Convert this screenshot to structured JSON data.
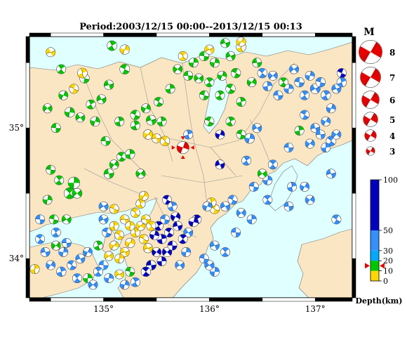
{
  "title": "Period:2003/12/15 00:00--2013/12/15 00:13",
  "map": {
    "lon_labels": [
      "135°",
      "136°",
      "137°"
    ],
    "lon_values": [
      135,
      136,
      137
    ],
    "lat_labels": [
      "35°",
      "34°"
    ],
    "lat_values": [
      35,
      34
    ],
    "lon_range": [
      134.3,
      137.35
    ],
    "lat_range": [
      33.7,
      35.7
    ],
    "land_color": "#fae6c3",
    "sea_color": "#e0ffff",
    "depth_colors": {
      "shallow": "#ffd700",
      "d10_20": "#00c800",
      "d20_30": "#00aaff",
      "d30_50": "#3390ff",
      "deep": "#0000c0"
    },
    "mechanisms": [
      [
        134.47,
        35.15,
        3.6,
        "#00c800",
        1
      ],
      [
        134.55,
        35.0,
        3.6,
        "#00c800",
        2
      ],
      [
        134.6,
        35.45,
        3.6,
        "#00c800",
        3
      ],
      [
        134.68,
        35.12,
        3.8,
        "#00c800",
        4
      ],
      [
        134.78,
        35.08,
        3.6,
        "#00c800",
        5
      ],
      [
        134.82,
        35.38,
        3.7,
        "#00c800",
        6
      ],
      [
        134.88,
        35.18,
        3.6,
        "#00c800",
        7
      ],
      [
        134.92,
        35.05,
        3.7,
        "#00c800",
        8
      ],
      [
        134.98,
        35.22,
        3.6,
        "#00c800",
        9
      ],
      [
        134.72,
        35.3,
        3.6,
        "#ffd700",
        10
      ],
      [
        134.8,
        35.42,
        3.8,
        "#ffd700",
        11
      ],
      [
        134.62,
        35.25,
        3.6,
        "#00c800",
        12
      ],
      [
        135.05,
        35.33,
        3.7,
        "#00c800",
        13
      ],
      [
        135.2,
        35.45,
        3.8,
        "#00c800",
        14
      ],
      [
        135.15,
        35.05,
        3.6,
        "#00c800",
        15
      ],
      [
        135.1,
        34.72,
        3.6,
        "#00c800",
        16
      ],
      [
        135.05,
        34.65,
        3.8,
        "#00c800",
        17
      ],
      [
        135.17,
        34.78,
        3.6,
        "#00c800",
        18
      ],
      [
        135.25,
        34.8,
        3.7,
        "#00c800",
        19
      ],
      [
        135.35,
        34.65,
        3.6,
        "#00c800",
        20
      ],
      [
        135.02,
        34.9,
        3.6,
        "#00c800",
        21
      ],
      [
        134.68,
        34.5,
        4.2,
        "#00c800",
        22
      ],
      [
        134.72,
        34.58,
        4.4,
        "#00c800",
        23
      ],
      [
        134.75,
        34.5,
        3.8,
        "#00c800",
        24
      ],
      [
        134.5,
        34.68,
        3.6,
        "#00c800",
        25
      ],
      [
        134.58,
        34.6,
        3.6,
        "#00c800",
        26
      ],
      [
        134.47,
        34.45,
        3.6,
        "#00c800",
        27
      ],
      [
        134.65,
        34.3,
        3.6,
        "#00c800",
        28
      ],
      [
        134.53,
        34.3,
        3.6,
        "#00c800",
        29
      ],
      [
        135.08,
        35.63,
        3.8,
        "#00c800",
        30
      ],
      [
        135.2,
        35.6,
        3.7,
        "#ffd700",
        31
      ],
      [
        134.5,
        35.58,
        3.6,
        "#ffd700",
        32
      ],
      [
        135.3,
        35.1,
        3.7,
        "#00c800",
        33
      ],
      [
        135.3,
        35.02,
        3.6,
        "#00c800",
        34
      ],
      [
        135.4,
        35.15,
        3.6,
        "#00c800",
        35
      ],
      [
        135.45,
        35.06,
        3.8,
        "#00c800",
        36
      ],
      [
        135.52,
        35.2,
        3.6,
        "#00c800",
        37
      ],
      [
        135.55,
        35.05,
        3.6,
        "#00c800",
        38
      ],
      [
        135.42,
        34.95,
        3.7,
        "#ffd700",
        39
      ],
      [
        135.5,
        34.92,
        3.6,
        "#ffd700",
        40
      ],
      [
        135.58,
        34.9,
        3.7,
        "#ffd700",
        41
      ],
      [
        135.63,
        35.3,
        3.6,
        "#00c800",
        42
      ],
      [
        135.7,
        35.45,
        3.6,
        "#00c800",
        43
      ],
      [
        135.8,
        35.4,
        3.6,
        "#00c800",
        44
      ],
      [
        135.75,
        35.55,
        3.6,
        "#ffd700",
        45
      ],
      [
        135.85,
        35.5,
        3.6,
        "#00c800",
        46
      ],
      [
        135.9,
        35.38,
        3.6,
        "#00c800",
        47
      ],
      [
        135.95,
        35.55,
        3.7,
        "#00c800",
        48
      ],
      [
        136.0,
        35.35,
        3.6,
        "#00c800",
        49
      ],
      [
        136.05,
        35.5,
        3.6,
        "#00c800",
        50
      ],
      [
        136.0,
        35.6,
        3.6,
        "#ffd700",
        51
      ],
      [
        135.95,
        35.25,
        3.6,
        "#00c800",
        52
      ],
      [
        136.1,
        35.25,
        3.6,
        "#00c800",
        53
      ],
      [
        136.12,
        35.4,
        3.6,
        "#00c800",
        54
      ],
      [
        136.2,
        35.55,
        3.6,
        "#00c800",
        55
      ],
      [
        136.25,
        35.42,
        3.7,
        "#00c800",
        56
      ],
      [
        136.3,
        35.62,
        3.8,
        "#ffd700",
        57
      ],
      [
        136.3,
        35.66,
        3.6,
        "#ffd700",
        58
      ],
      [
        136.15,
        35.65,
        3.6,
        "#00c800",
        59
      ],
      [
        136.2,
        35.3,
        3.7,
        "#00c800",
        60
      ],
      [
        136.3,
        35.2,
        3.6,
        "#00c800",
        61
      ],
      [
        136.4,
        35.35,
        3.6,
        "#00c800",
        62
      ],
      [
        136.45,
        35.5,
        3.6,
        "#00c800",
        63
      ],
      [
        136.5,
        35.42,
        3.7,
        "#3390ff",
        64
      ],
      [
        136.55,
        35.32,
        3.6,
        "#3390ff",
        65
      ],
      [
        136.6,
        35.4,
        3.6,
        "#3390ff",
        66
      ],
      [
        136.65,
        35.25,
        3.6,
        "#3390ff",
        67
      ],
      [
        136.7,
        35.35,
        3.6,
        "#00c800",
        68
      ],
      [
        136.75,
        35.3,
        3.6,
        "#3390ff",
        69
      ],
      [
        136.8,
        35.45,
        3.6,
        "#3390ff",
        70
      ],
      [
        136.85,
        35.35,
        3.7,
        "#3390ff",
        71
      ],
      [
        136.9,
        35.25,
        3.6,
        "#3390ff",
        72
      ],
      [
        136.95,
        35.4,
        3.6,
        "#3390ff",
        73
      ],
      [
        137.0,
        35.3,
        3.8,
        "#3390ff",
        74
      ],
      [
        137.05,
        35.35,
        3.7,
        "#3390ff",
        75
      ],
      [
        137.1,
        35.25,
        3.7,
        "#3390ff",
        76
      ],
      [
        137.15,
        35.15,
        3.6,
        "#3390ff",
        77
      ],
      [
        137.2,
        35.3,
        3.6,
        "#3390ff",
        78
      ],
      [
        137.25,
        35.42,
        3.6,
        "#0000c0",
        79
      ],
      [
        137.25,
        35.35,
        3.7,
        "#3390ff",
        80
      ],
      [
        137.1,
        35.05,
        3.6,
        "#3390ff",
        81
      ],
      [
        137.0,
        35.0,
        3.6,
        "#3390ff",
        82
      ],
      [
        136.9,
        35.1,
        3.6,
        "#3390ff",
        83
      ],
      [
        136.85,
        34.98,
        3.6,
        "#00c800",
        84
      ],
      [
        136.95,
        34.88,
        3.6,
        "#3390ff",
        85
      ],
      [
        137.05,
        34.95,
        3.6,
        "#3390ff",
        86
      ],
      [
        137.15,
        34.9,
        3.8,
        "#3390ff",
        87
      ],
      [
        137.1,
        34.85,
        3.6,
        "#3390ff",
        88
      ],
      [
        137.2,
        34.95,
        3.6,
        "#3390ff",
        89
      ],
      [
        136.75,
        34.85,
        3.6,
        "#3390ff",
        90
      ],
      [
        136.6,
        34.72,
        3.6,
        "#3390ff",
        91
      ],
      [
        136.55,
        34.6,
        3.6,
        "#3390ff",
        92
      ],
      [
        136.5,
        34.65,
        3.6,
        "#00c800",
        93
      ],
      [
        136.42,
        34.55,
        3.6,
        "#3390ff",
        94
      ],
      [
        136.35,
        34.75,
        3.6,
        "#3390ff",
        95
      ],
      [
        136.38,
        34.92,
        3.8,
        "#3390ff",
        96
      ],
      [
        136.45,
        35.0,
        3.6,
        "#3390ff",
        97
      ],
      [
        136.3,
        34.95,
        3.6,
        "#00c800",
        98
      ],
      [
        136.2,
        35.05,
        3.6,
        "#00c800",
        99
      ],
      [
        136.1,
        34.95,
        3.6,
        "#0000c0",
        100
      ],
      [
        136.1,
        34.72,
        3.6,
        "#0000c0",
        101
      ],
      [
        136.0,
        35.05,
        3.6,
        "#00c800",
        102
      ],
      [
        135.8,
        34.95,
        3.6,
        "#3390ff",
        103
      ],
      [
        136.9,
        34.55,
        3.6,
        "#3390ff",
        104
      ],
      [
        137.15,
        34.65,
        3.6,
        "#3390ff",
        105
      ],
      [
        137.2,
        34.3,
        3.6,
        "#3390ff",
        106
      ],
      [
        136.78,
        34.55,
        3.6,
        "#3390ff",
        107
      ],
      [
        136.95,
        34.45,
        3.6,
        "#3390ff",
        108
      ],
      [
        136.75,
        34.4,
        3.6,
        "#3390ff",
        109
      ],
      [
        136.55,
        34.45,
        3.6,
        "#3390ff",
        110
      ],
      [
        136.4,
        34.3,
        3.6,
        "#3390ff",
        111
      ],
      [
        136.3,
        34.35,
        3.6,
        "#3390ff",
        112
      ],
      [
        136.25,
        34.2,
        3.6,
        "#3390ff",
        113
      ],
      [
        136.15,
        34.05,
        3.6,
        "#3390ff",
        114
      ],
      [
        136.05,
        33.9,
        3.6,
        "#3390ff",
        115
      ],
      [
        136.0,
        33.95,
        3.7,
        "#3390ff",
        116
      ],
      [
        135.95,
        34.0,
        3.6,
        "#3390ff",
        117
      ],
      [
        135.88,
        34.3,
        3.6,
        "#0000c0",
        118
      ],
      [
        135.85,
        34.28,
        3.7,
        "#0000c0",
        119
      ],
      [
        135.8,
        34.2,
        3.6,
        "#3390ff",
        120
      ],
      [
        136.05,
        34.38,
        3.7,
        "#ffd700",
        121
      ],
      [
        136.02,
        34.43,
        3.6,
        "#ffd700",
        122
      ],
      [
        135.98,
        34.4,
        3.6,
        "#3390ff",
        123
      ],
      [
        136.05,
        34.1,
        3.6,
        "#3390ff",
        124
      ],
      [
        135.6,
        34.45,
        3.6,
        "#0000c0",
        125
      ],
      [
        135.65,
        34.4,
        3.6,
        "#3390ff",
        126
      ],
      [
        135.68,
        34.32,
        3.7,
        "#0000c0",
        127
      ],
      [
        135.7,
        34.25,
        3.6,
        "#0000c0",
        128
      ],
      [
        135.62,
        34.2,
        3.6,
        "#0000c0",
        129
      ],
      [
        135.55,
        34.15,
        3.7,
        "#0000c0",
        130
      ],
      [
        135.5,
        34.05,
        3.6,
        "#0000c0",
        131
      ],
      [
        135.45,
        33.95,
        3.8,
        "#0000c0",
        132
      ],
      [
        135.4,
        33.9,
        3.7,
        "#0000c0",
        133
      ],
      [
        135.55,
        33.98,
        3.6,
        "#0000c0",
        134
      ],
      [
        135.6,
        34.05,
        3.7,
        "#0000c0",
        135
      ],
      [
        135.65,
        34.1,
        3.6,
        "#0000c0",
        136
      ],
      [
        135.75,
        34.15,
        3.6,
        "#0000c0",
        137
      ],
      [
        135.78,
        34.05,
        3.6,
        "#3390ff",
        138
      ],
      [
        135.72,
        33.95,
        3.6,
        "#3390ff",
        139
      ],
      [
        135.58,
        34.3,
        3.6,
        "#3390ff",
        140
      ],
      [
        135.52,
        34.25,
        3.6,
        "#0000c0",
        141
      ],
      [
        135.48,
        34.18,
        3.6,
        "#0000c0",
        142
      ],
      [
        135.42,
        34.08,
        3.6,
        "#ffd700",
        143
      ],
      [
        135.38,
        34.15,
        3.6,
        "#ffd700",
        144
      ],
      [
        135.3,
        34.2,
        3.6,
        "#ffd700",
        145
      ],
      [
        135.25,
        34.12,
        3.7,
        "#ffd700",
        146
      ],
      [
        135.2,
        34.05,
        3.6,
        "#ffd700",
        147
      ],
      [
        135.15,
        34.18,
        3.6,
        "#ffd700",
        148
      ],
      [
        135.1,
        34.25,
        3.6,
        "#ffd700",
        149
      ],
      [
        135.1,
        34.1,
        3.6,
        "#ffd700",
        150
      ],
      [
        135.2,
        34.3,
        3.6,
        "#ffd700",
        151
      ],
      [
        135.3,
        34.35,
        3.6,
        "#ffd700",
        152
      ],
      [
        135.25,
        34.25,
        3.6,
        "#ffd700",
        153
      ],
      [
        135.35,
        34.25,
        3.6,
        "#ffd700",
        154
      ],
      [
        135.4,
        34.3,
        3.6,
        "#ffd700",
        155
      ],
      [
        135.45,
        34.25,
        3.6,
        "#ffd700",
        156
      ],
      [
        135.15,
        34.0,
        3.6,
        "#ffd700",
        157
      ],
      [
        135.05,
        34.02,
        3.6,
        "#ffd700",
        158
      ],
      [
        135.0,
        33.95,
        3.6,
        "#3390ff",
        159
      ],
      [
        134.95,
        33.9,
        3.6,
        "#3390ff",
        160
      ],
      [
        135.05,
        33.85,
        3.6,
        "#3390ff",
        161
      ],
      [
        135.15,
        33.88,
        3.6,
        "#ffd700",
        162
      ],
      [
        135.25,
        33.9,
        3.6,
        "#00c800",
        163
      ],
      [
        135.3,
        33.82,
        3.6,
        "#3390ff",
        164
      ],
      [
        135.2,
        33.8,
        3.6,
        "#3390ff",
        165
      ],
      [
        135.0,
        34.3,
        3.6,
        "#3390ff",
        166
      ],
      [
        135.03,
        34.2,
        3.6,
        "#3390ff",
        167
      ],
      [
        134.95,
        34.1,
        3.6,
        "#00c800",
        168
      ],
      [
        134.85,
        34.05,
        3.6,
        "#3390ff",
        169
      ],
      [
        134.78,
        34.0,
        3.6,
        "#3390ff",
        170
      ],
      [
        134.7,
        33.95,
        3.6,
        "#3390ff",
        171
      ],
      [
        134.6,
        33.9,
        3.7,
        "#3390ff",
        172
      ],
      [
        134.5,
        33.95,
        3.6,
        "#3390ff",
        173
      ],
      [
        134.45,
        34.05,
        3.6,
        "#3390ff",
        174
      ],
      [
        134.4,
        34.15,
        3.6,
        "#3390ff",
        175
      ],
      [
        134.35,
        33.92,
        3.6,
        "#ffd700",
        176
      ],
      [
        134.55,
        34.1,
        3.6,
        "#00c800",
        177
      ],
      [
        134.65,
        34.12,
        3.6,
        "#3390ff",
        178
      ],
      [
        134.75,
        33.85,
        3.6,
        "#3390ff",
        179
      ],
      [
        134.85,
        33.85,
        3.6,
        "#00c800",
        180
      ],
      [
        134.9,
        33.8,
        3.6,
        "#3390ff",
        181
      ],
      [
        134.4,
        34.3,
        3.6,
        "#3390ff",
        182
      ],
      [
        134.55,
        34.2,
        3.6,
        "#3390ff",
        183
      ],
      [
        134.62,
        34.05,
        3.6,
        "#3390ff",
        184
      ],
      [
        135.0,
        34.4,
        3.6,
        "#3390ff",
        185
      ],
      [
        135.1,
        34.38,
        3.6,
        "#ffd700",
        186
      ],
      [
        135.35,
        34.42,
        3.6,
        "#ffd700",
        187
      ],
      [
        135.38,
        34.48,
        3.6,
        "#ffd700",
        188
      ],
      [
        136.15,
        34.4,
        3.7,
        "#3390ff",
        189
      ],
      [
        136.22,
        34.45,
        3.6,
        "#3390ff",
        190
      ]
    ],
    "highlight_event": {
      "lon": 135.75,
      "lat": 34.85,
      "mag": 4.2,
      "color": "#e60000"
    }
  },
  "magnitude_legend": {
    "title": "M",
    "items": [
      {
        "label": "8",
        "mag": 8
      },
      {
        "label": "7",
        "mag": 7
      },
      {
        "label": "6",
        "mag": 6
      },
      {
        "label": "5",
        "mag": 5
      },
      {
        "label": "4",
        "mag": 4
      },
      {
        "label": "3",
        "mag": 3
      }
    ],
    "color": "#e60000"
  },
  "depth_scale": {
    "title": "Depth(km)",
    "ticks": [
      "100",
      "50",
      "30",
      "20",
      "10",
      "0"
    ],
    "tick_values": [
      100,
      50,
      30,
      20,
      10,
      0
    ],
    "marker_depth": 15,
    "marker_color": "#e60000"
  }
}
